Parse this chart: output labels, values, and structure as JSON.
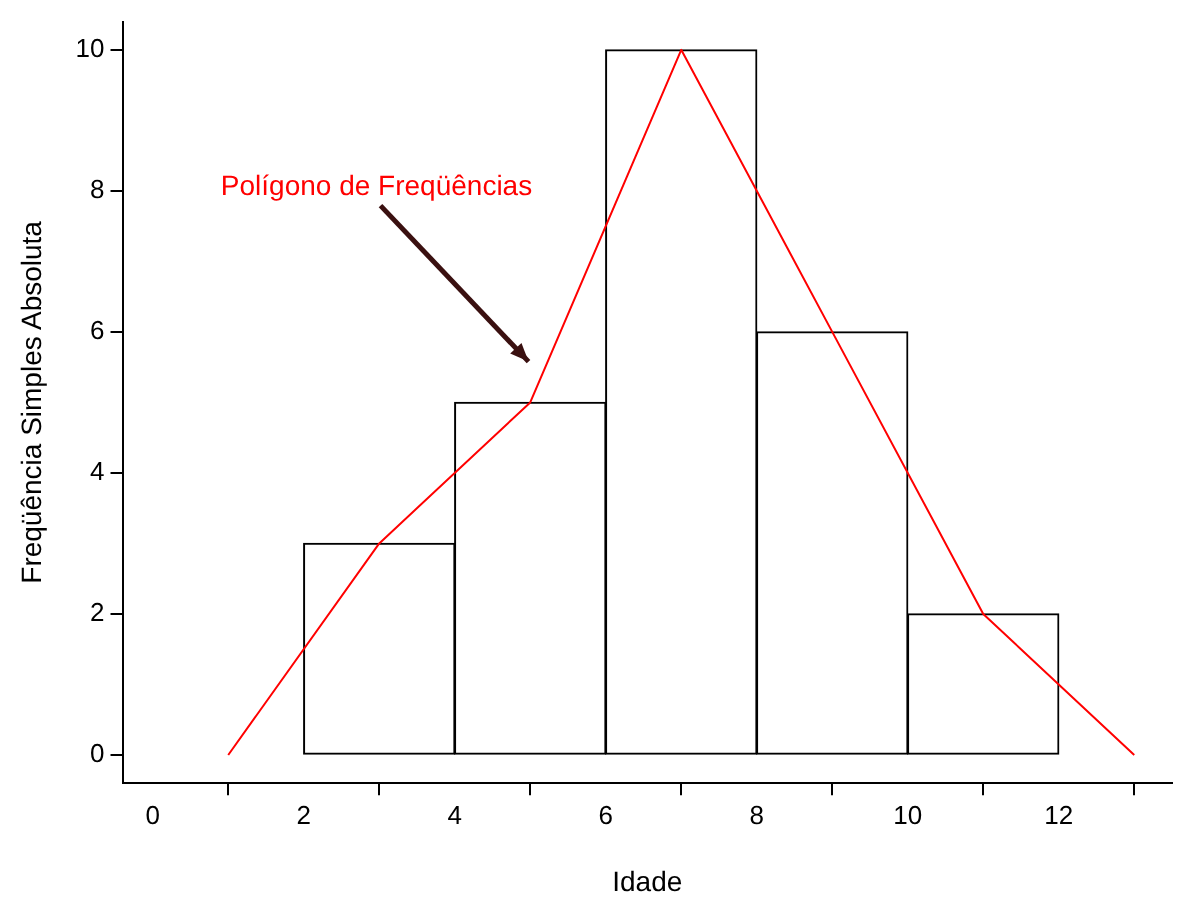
{
  "chart_data": {
    "type": "histogram",
    "xlabel": "Idade",
    "ylabel": "Freqüência Simples Absoluta",
    "bins": [
      2,
      4,
      6,
      8,
      10,
      12
    ],
    "values": [
      3,
      5,
      10,
      6,
      2
    ],
    "color": "#ffffff",
    "series": [
      {
        "type": "line",
        "color": "#ff0000",
        "x": [
          1,
          3,
          5,
          7,
          9,
          11,
          13
        ],
        "values": [
          0,
          3,
          5,
          10,
          6,
          2,
          0
        ]
      }
    ],
    "xlim": [
      -0.4,
      13.5
    ],
    "xticks": [
      0,
      2,
      4,
      6,
      8,
      10,
      12
    ],
    "ylim": [
      -0.4,
      10.4
    ],
    "yticks": [
      0,
      2,
      4,
      6,
      8,
      10
    ],
    "annotations": [
      "Polígono de Freqüências"
    ],
    "grid": false,
    "legend": false,
    "marker": "none",
    "line_style": "solid"
  }
}
